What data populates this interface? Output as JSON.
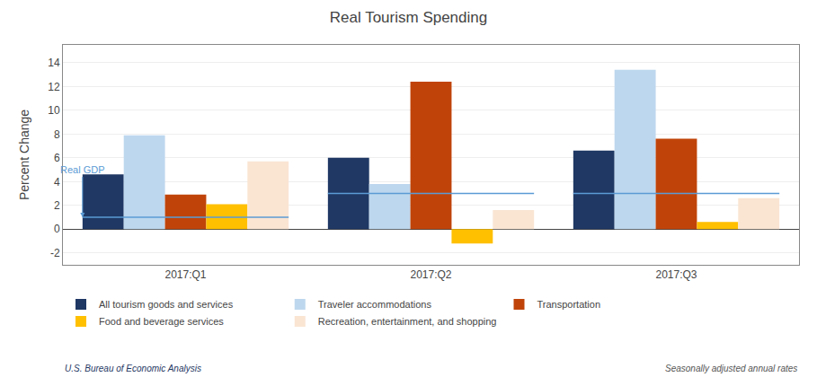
{
  "chart_data": {
    "type": "bar",
    "title": "Real Tourism Spending",
    "ylabel": "Percent Change",
    "categories": [
      "2017:Q1",
      "2017:Q2",
      "2017:Q3"
    ],
    "series": [
      {
        "name": "All tourism goods and services",
        "color": "#1F3864",
        "values": [
          4.6,
          6.0,
          6.6
        ]
      },
      {
        "name": "Traveler accommodations",
        "color": "#BDD7EE",
        "values": [
          7.9,
          3.8,
          13.4
        ]
      },
      {
        "name": "Transportation",
        "color": "#C0440A",
        "values": [
          2.9,
          12.4,
          7.6
        ]
      },
      {
        "name": "Food and beverage services",
        "color": "#FFC000",
        "values": [
          2.1,
          -1.2,
          0.6
        ]
      },
      {
        "name": "Recreation, entertainment, and shopping",
        "color": "#FAE5D3",
        "values": [
          5.7,
          1.6,
          2.6
        ]
      },
      {
        "name": "Real GDP",
        "type": "line",
        "color": "#5B9BD5",
        "values": [
          1.0,
          3.0,
          3.0
        ]
      }
    ],
    "ylim": [
      -3,
      15.5
    ],
    "yticks": [
      -2,
      0,
      2,
      4,
      6,
      8,
      10,
      12,
      14
    ],
    "grid": true,
    "legend": "bottom",
    "annotations": [
      "U.S. Bureau of Economic Analysis",
      "Seasonally adjusted annual rates"
    ]
  }
}
